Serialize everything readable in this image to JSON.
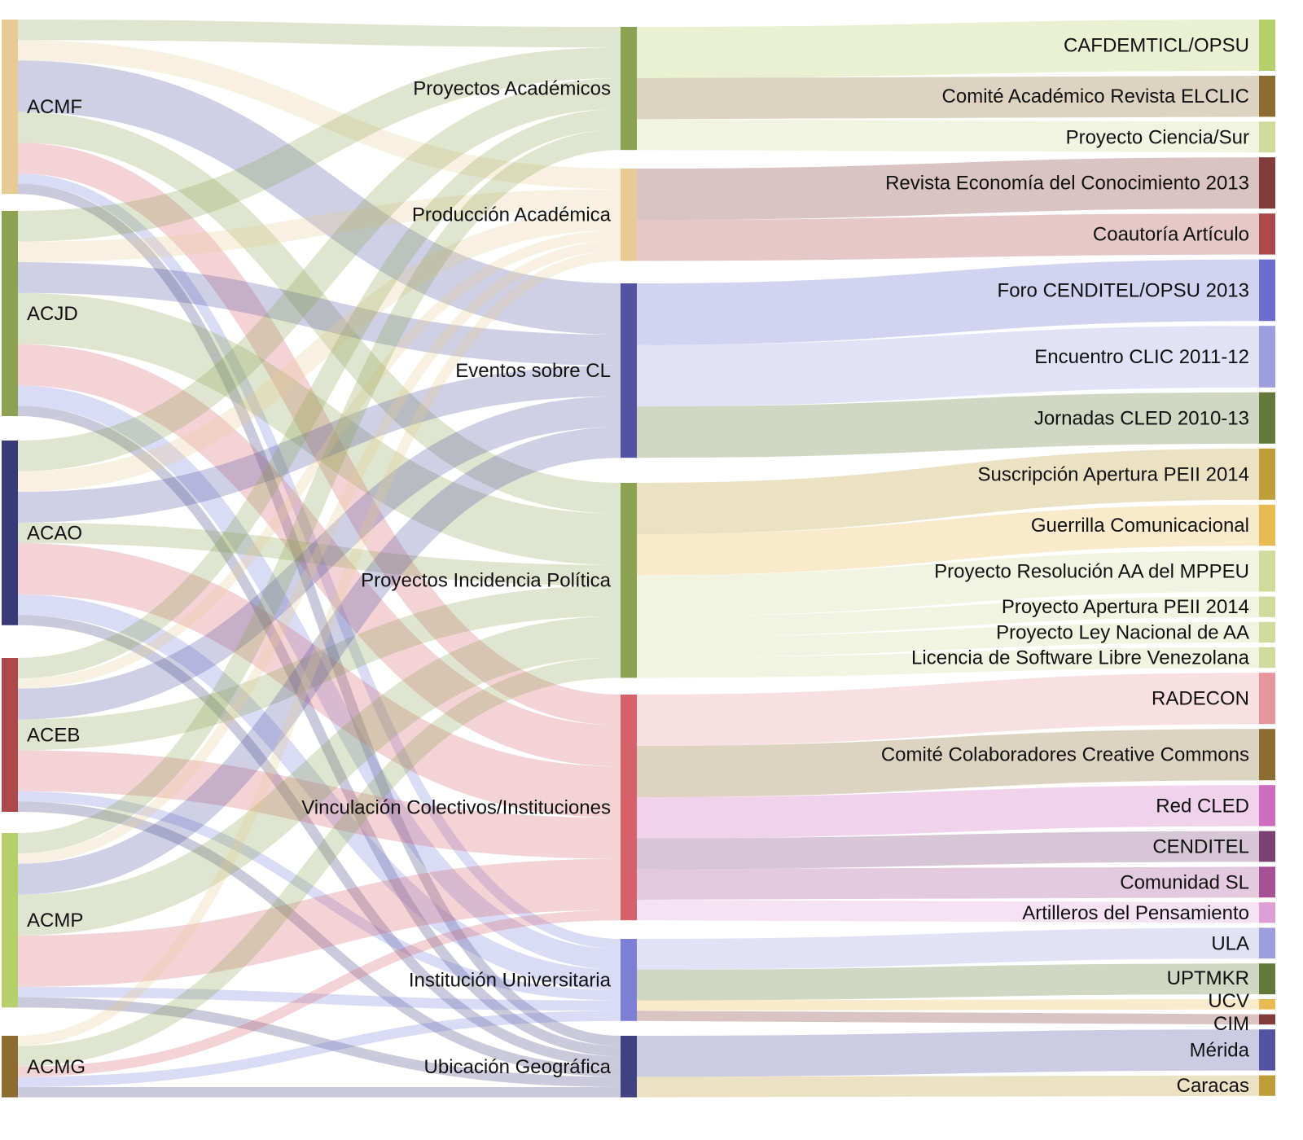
{
  "diagram": {
    "type": "sankey",
    "columns": [
      [
        {
          "id": "ACMF",
          "label": "ACMF",
          "color": "#e7cb94"
        },
        {
          "id": "ACJD",
          "label": "ACJD",
          "color": "#8ca252"
        },
        {
          "id": "ACAO",
          "label": "ACAO",
          "color": "#393b79"
        },
        {
          "id": "ACEB",
          "label": "ACEB",
          "color": "#ad494a"
        },
        {
          "id": "ACMP",
          "label": "ACMP",
          "color": "#b5cf6b"
        },
        {
          "id": "ACMG",
          "label": "ACMG",
          "color": "#8c6d31"
        }
      ],
      [
        {
          "id": "PA",
          "label": "Proyectos Académicos",
          "color": "#8ca252"
        },
        {
          "id": "PRA",
          "label": "Producción Académica",
          "color": "#e7cb94"
        },
        {
          "id": "EV",
          "label": "Eventos sobre CL",
          "color": "#5254a3"
        },
        {
          "id": "PIP",
          "label": "Proyectos Incidencia Política",
          "color": "#8ca252"
        },
        {
          "id": "VCI",
          "label": "Vinculación Colectivos/Instituciones",
          "color": "#d6616b"
        },
        {
          "id": "IU",
          "label": "Institución Universitaria",
          "color": "#7b7fd6"
        },
        {
          "id": "UG",
          "label": "Ubicación Geográfica",
          "color": "#3f4180"
        }
      ],
      [
        {
          "id": "R1",
          "label": "CAFDEMTICL/OPSU",
          "color": "#b5cf6b"
        },
        {
          "id": "R2",
          "label": "Comité Académico Revista ELCLIC",
          "color": "#8c6d31"
        },
        {
          "id": "R3",
          "label": "Proyecto Ciencia/Sur",
          "color": "#cedb9c"
        },
        {
          "id": "R4",
          "label": "Revista Economía del Conocimiento 2013",
          "color": "#843c39"
        },
        {
          "id": "R5",
          "label": "Coautoría Artículo",
          "color": "#ad494a"
        },
        {
          "id": "R6",
          "label": "Foro CENDITEL/OPSU 2013",
          "color": "#6b6ecf"
        },
        {
          "id": "R7",
          "label": "Encuentro CLIC 2011-12",
          "color": "#9c9ede"
        },
        {
          "id": "R8",
          "label": "Jornadas CLED 2010-13",
          "color": "#637939"
        },
        {
          "id": "R9",
          "label": "Suscripción Apertura PEII 2014",
          "color": "#bd9e39"
        },
        {
          "id": "R10",
          "label": "Guerrilla Comunicacional",
          "color": "#e7ba52"
        },
        {
          "id": "R11",
          "label": "Proyecto Resolución AA del MPPEU",
          "color": "#cedb9c"
        },
        {
          "id": "R12",
          "label": "Proyecto Apertura PEII 2014",
          "color": "#cedb9c"
        },
        {
          "id": "R13",
          "label": "Proyecto Ley Nacional de AA",
          "color": "#cedb9c"
        },
        {
          "id": "R14",
          "label": "Licencia de Software Libre Venezolana",
          "color": "#cedb9c"
        },
        {
          "id": "R15",
          "label": "RADECON",
          "color": "#e7969c"
        },
        {
          "id": "R16",
          "label": "Comité Colaboradores Creative Commons",
          "color": "#8c6d31"
        },
        {
          "id": "R17",
          "label": "Red CLED",
          "color": "#ce6dbd"
        },
        {
          "id": "R18",
          "label": "CENDITEL",
          "color": "#7b4173"
        },
        {
          "id": "R19",
          "label": "Comunidad SL",
          "color": "#a55194"
        },
        {
          "id": "R20",
          "label": "Artilleros del Pensamiento",
          "color": "#de9ed6"
        },
        {
          "id": "R21",
          "label": "ULA",
          "color": "#9c9ede"
        },
        {
          "id": "R22",
          "label": "UPTMKR",
          "color": "#637939"
        },
        {
          "id": "R23",
          "label": "UCV",
          "color": "#e7ba52"
        },
        {
          "id": "R24",
          "label": "CIM",
          "color": "#843c39"
        },
        {
          "id": "R25",
          "label": "Mérida",
          "color": "#5254a3"
        },
        {
          "id": "R26",
          "label": "Caracas",
          "color": "#bd9e39"
        }
      ]
    ],
    "links": [
      {
        "source": "ACMF",
        "target": "PA",
        "value": 2
      },
      {
        "source": "ACMF",
        "target": "PRA",
        "value": 2
      },
      {
        "source": "ACMF",
        "target": "EV",
        "value": 5
      },
      {
        "source": "ACMF",
        "target": "PIP",
        "value": 3
      },
      {
        "source": "ACMF",
        "target": "VCI",
        "value": 3
      },
      {
        "source": "ACMF",
        "target": "IU",
        "value": 1
      },
      {
        "source": "ACMF",
        "target": "UG",
        "value": 1
      },
      {
        "source": "ACJD",
        "target": "PA",
        "value": 3
      },
      {
        "source": "ACJD",
        "target": "PRA",
        "value": 2
      },
      {
        "source": "ACJD",
        "target": "EV",
        "value": 3
      },
      {
        "source": "ACJD",
        "target": "PIP",
        "value": 5
      },
      {
        "source": "ACJD",
        "target": "VCI",
        "value": 4
      },
      {
        "source": "ACJD",
        "target": "IU",
        "value": 2
      },
      {
        "source": "ACJD",
        "target": "UG",
        "value": 1
      },
      {
        "source": "ACAO",
        "target": "PA",
        "value": 3
      },
      {
        "source": "ACAO",
        "target": "PRA",
        "value": 2
      },
      {
        "source": "ACAO",
        "target": "EV",
        "value": 3
      },
      {
        "source": "ACAO",
        "target": "PIP",
        "value": 2
      },
      {
        "source": "ACAO",
        "target": "VCI",
        "value": 5
      },
      {
        "source": "ACAO",
        "target": "IU",
        "value": 2
      },
      {
        "source": "ACAO",
        "target": "UG",
        "value": 1
      },
      {
        "source": "ACEB",
        "target": "PA",
        "value": 2
      },
      {
        "source": "ACEB",
        "target": "PRA",
        "value": 1
      },
      {
        "source": "ACEB",
        "target": "EV",
        "value": 3
      },
      {
        "source": "ACEB",
        "target": "PIP",
        "value": 3
      },
      {
        "source": "ACEB",
        "target": "VCI",
        "value": 4
      },
      {
        "source": "ACEB",
        "target": "IU",
        "value": 1
      },
      {
        "source": "ACEB",
        "target": "UG",
        "value": 1
      },
      {
        "source": "ACMP",
        "target": "PA",
        "value": 2
      },
      {
        "source": "ACMP",
        "target": "PRA",
        "value": 1
      },
      {
        "source": "ACMP",
        "target": "EV",
        "value": 3
      },
      {
        "source": "ACMP",
        "target": "PIP",
        "value": 4
      },
      {
        "source": "ACMP",
        "target": "VCI",
        "value": 5
      },
      {
        "source": "ACMP",
        "target": "IU",
        "value": 1
      },
      {
        "source": "ACMP",
        "target": "UG",
        "value": 1
      },
      {
        "source": "ACMG",
        "target": "PRA",
        "value": 1
      },
      {
        "source": "ACMG",
        "target": "PIP",
        "value": 2
      },
      {
        "source": "ACMG",
        "target": "VCI",
        "value": 1
      },
      {
        "source": "ACMG",
        "target": "IU",
        "value": 1
      },
      {
        "source": "ACMG",
        "target": "UG",
        "value": 1
      },
      {
        "source": "PA",
        "target": "R1",
        "value": 5
      },
      {
        "source": "PA",
        "target": "R2",
        "value": 4
      },
      {
        "source": "PA",
        "target": "R3",
        "value": 3
      },
      {
        "source": "PRA",
        "target": "R4",
        "value": 5
      },
      {
        "source": "PRA",
        "target": "R5",
        "value": 4
      },
      {
        "source": "EV",
        "target": "R6",
        "value": 6
      },
      {
        "source": "EV",
        "target": "R7",
        "value": 6
      },
      {
        "source": "EV",
        "target": "R8",
        "value": 5
      },
      {
        "source": "PIP",
        "target": "R9",
        "value": 5
      },
      {
        "source": "PIP",
        "target": "R10",
        "value": 4
      },
      {
        "source": "PIP",
        "target": "R11",
        "value": 4
      },
      {
        "source": "PIP",
        "target": "R12",
        "value": 2
      },
      {
        "source": "PIP",
        "target": "R13",
        "value": 2
      },
      {
        "source": "PIP",
        "target": "R14",
        "value": 2
      },
      {
        "source": "VCI",
        "target": "R15",
        "value": 5
      },
      {
        "source": "VCI",
        "target": "R16",
        "value": 5
      },
      {
        "source": "VCI",
        "target": "R17",
        "value": 4
      },
      {
        "source": "VCI",
        "target": "R18",
        "value": 3
      },
      {
        "source": "VCI",
        "target": "R19",
        "value": 3
      },
      {
        "source": "VCI",
        "target": "R20",
        "value": 2
      },
      {
        "source": "IU",
        "target": "R21",
        "value": 3
      },
      {
        "source": "IU",
        "target": "R22",
        "value": 3
      },
      {
        "source": "IU",
        "target": "R23",
        "value": 1
      },
      {
        "source": "IU",
        "target": "R24",
        "value": 1
      },
      {
        "source": "UG",
        "target": "R25",
        "value": 4
      },
      {
        "source": "UG",
        "target": "R26",
        "value": 2
      }
    ]
  }
}
